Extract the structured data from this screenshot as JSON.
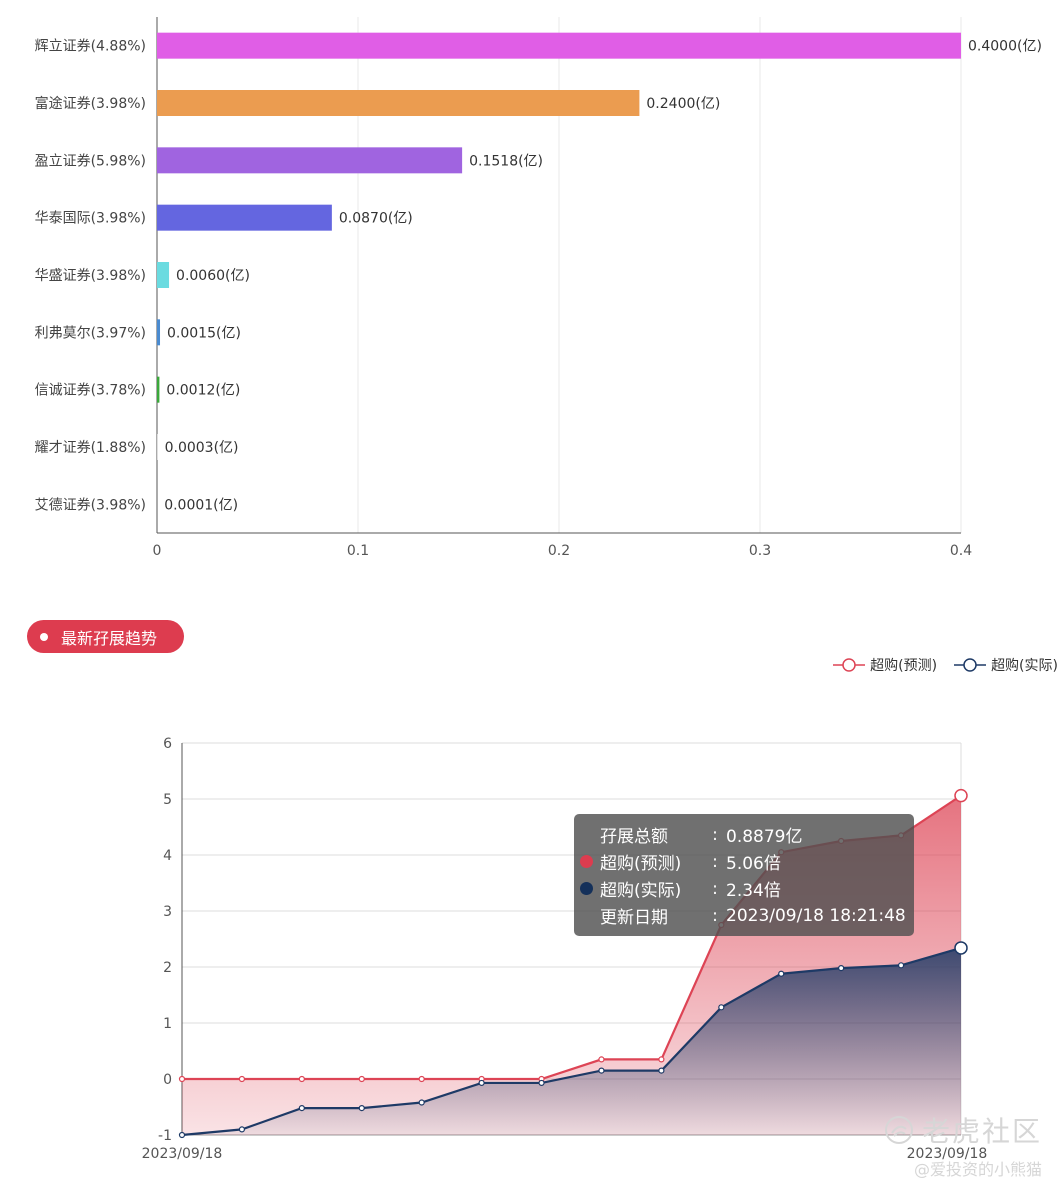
{
  "chart_data": [
    {
      "type": "bar",
      "orientation": "horizontal",
      "categories": [
        "辉立证券(4.88%)",
        "富途证券(3.98%)",
        "盈立证券(5.98%)",
        "华泰国际(3.98%)",
        "华盛证券(3.98%)",
        "利弗莫尔(3.97%)",
        "信诚证券(3.78%)",
        "耀才证券(1.88%)",
        "艾德证券(3.98%)"
      ],
      "values": [
        0.4,
        0.24,
        0.1518,
        0.087,
        0.006,
        0.0015,
        0.0012,
        0.0003,
        0.0001
      ],
      "data_labels": [
        "0.4000(亿)",
        "0.2400(亿)",
        "0.1518(亿)",
        "0.0870(亿)",
        "0.0060(亿)",
        "0.0015(亿)",
        "0.0012(亿)",
        "0.0003(亿)",
        "0.0001(亿)"
      ],
      "bar_colors": [
        "#e05ee6",
        "#eb9c50",
        "#a064e0",
        "#6466e0",
        "#6adbe0",
        "#4a8bd0",
        "#3aa83a",
        "#c9c9c9",
        "#c9c9c9"
      ],
      "xlim": [
        0,
        0.4
      ],
      "xticks": [
        "0",
        "0.1",
        "0.2",
        "0.3",
        "0.4"
      ],
      "grid": true
    },
    {
      "type": "area",
      "x_labels": [
        "2023/09/18",
        "2023/09/18"
      ],
      "ylim": [
        -1,
        6
      ],
      "yticks": [
        "-1",
        "0",
        "1",
        "2",
        "3",
        "4",
        "5",
        "6"
      ],
      "grid": true,
      "series": [
        {
          "name": "超购(预测)",
          "color": "#dd4455",
          "values": [
            0,
            0,
            0,
            0,
            0,
            0,
            0,
            0.35,
            0.35,
            2.75,
            4.05,
            4.25,
            4.35,
            5.06
          ]
        },
        {
          "name": "超购(实际)",
          "color": "#1e3a66",
          "values": [
            -1,
            -0.9,
            -0.52,
            -0.52,
            -0.42,
            -0.07,
            -0.07,
            0.15,
            0.15,
            1.28,
            1.88,
            1.98,
            2.03,
            2.34
          ]
        }
      ]
    }
  ],
  "section": {
    "title": "最新孖展趋势"
  },
  "tooltip": {
    "rows": [
      {
        "label": "孖展总额",
        "sep": ":",
        "value": "0.8879亿",
        "dot": ""
      },
      {
        "label": "超购(预测)",
        "sep": ":",
        "value": "5.06倍",
        "dot": "#dd3c4f"
      },
      {
        "label": "超购(实际)",
        "sep": ":",
        "value": "2.34倍",
        "dot": "#14305a"
      },
      {
        "label": "更新日期",
        "sep": ":",
        "value": "2023/09/18 18:21:48",
        "dot": ""
      }
    ]
  },
  "watermark": {
    "brand": "老虎社区",
    "user": "@爱投资的小熊猫"
  }
}
